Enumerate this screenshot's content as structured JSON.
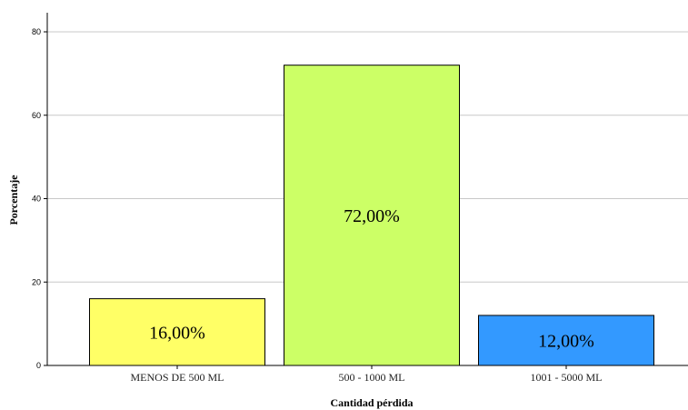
{
  "chart_data": {
    "type": "bar",
    "categories": [
      "MENOS DE 500 ML",
      "500 - 1000 ML",
      "1001 - 5000 ML"
    ],
    "values": [
      16,
      72,
      12
    ],
    "data_labels": [
      "16,00%",
      "72,00%",
      "12,00%"
    ],
    "colors": [
      "#ffff66",
      "#ccff66",
      "#3399ff"
    ],
    "xlabel": "Cantidad pérdida",
    "ylabel": "Porcentaje",
    "ylim": [
      0,
      80
    ],
    "yticks": [
      0,
      20,
      40,
      60,
      80
    ],
    "ytick_labels": [
      "0",
      "20",
      "40",
      "60",
      "80"
    ],
    "grid": true
  }
}
